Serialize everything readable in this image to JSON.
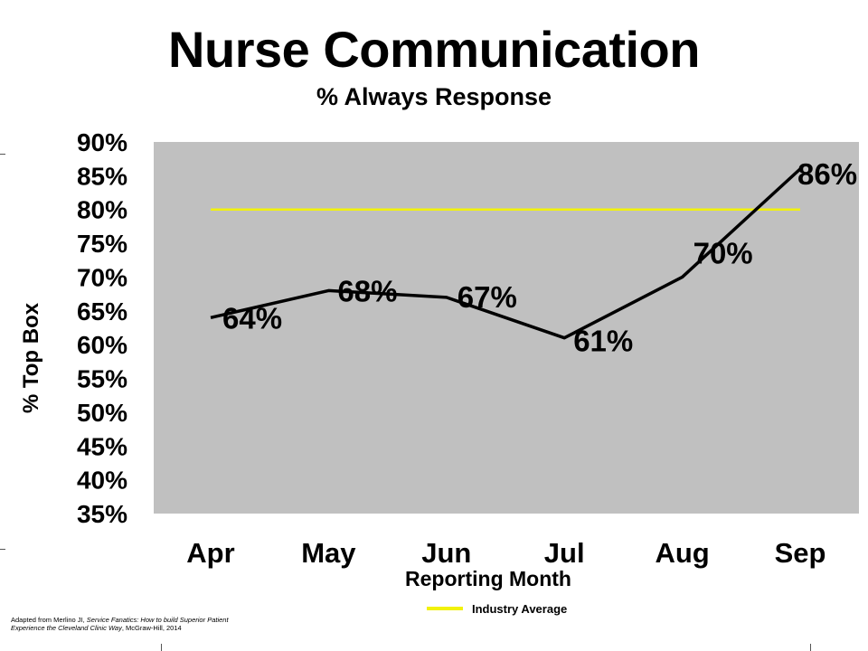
{
  "chart_data": {
    "type": "line",
    "title": "Nurse Communication",
    "subtitle": "% Always Response",
    "ylabel": "% Top Box",
    "xlabel": "Reporting Month",
    "categories": [
      "Apr",
      "May",
      "Jun",
      "Jul",
      "Aug",
      "Sep"
    ],
    "series": [
      {
        "name": "",
        "values": [
          64,
          68,
          67,
          61,
          70,
          86
        ],
        "color": "#000000"
      }
    ],
    "data_labels": [
      "64%",
      "68%",
      "67%",
      "61%",
      "70%",
      "86%"
    ],
    "reference_line": {
      "name": "Industry Average",
      "value": 80,
      "color": "#f2f20a"
    },
    "yticks": [
      "35%",
      "40%",
      "45%",
      "50%",
      "55%",
      "60%",
      "65%",
      "70%",
      "75%",
      "80%",
      "85%",
      "90%"
    ],
    "ylim": [
      35,
      90
    ],
    "grid": false,
    "plot_background": "#c0c0c0",
    "legend_position": "bottom"
  },
  "source_note": {
    "line1_prefix": "Adapted from Merlino JI, ",
    "line1_italic": "Service Fanatics: How to build Superior Patient",
    "line2_italic": "Experience the Cleveland Clinic Way",
    "line2_suffix": ", McGraw-Hill, 2014"
  }
}
